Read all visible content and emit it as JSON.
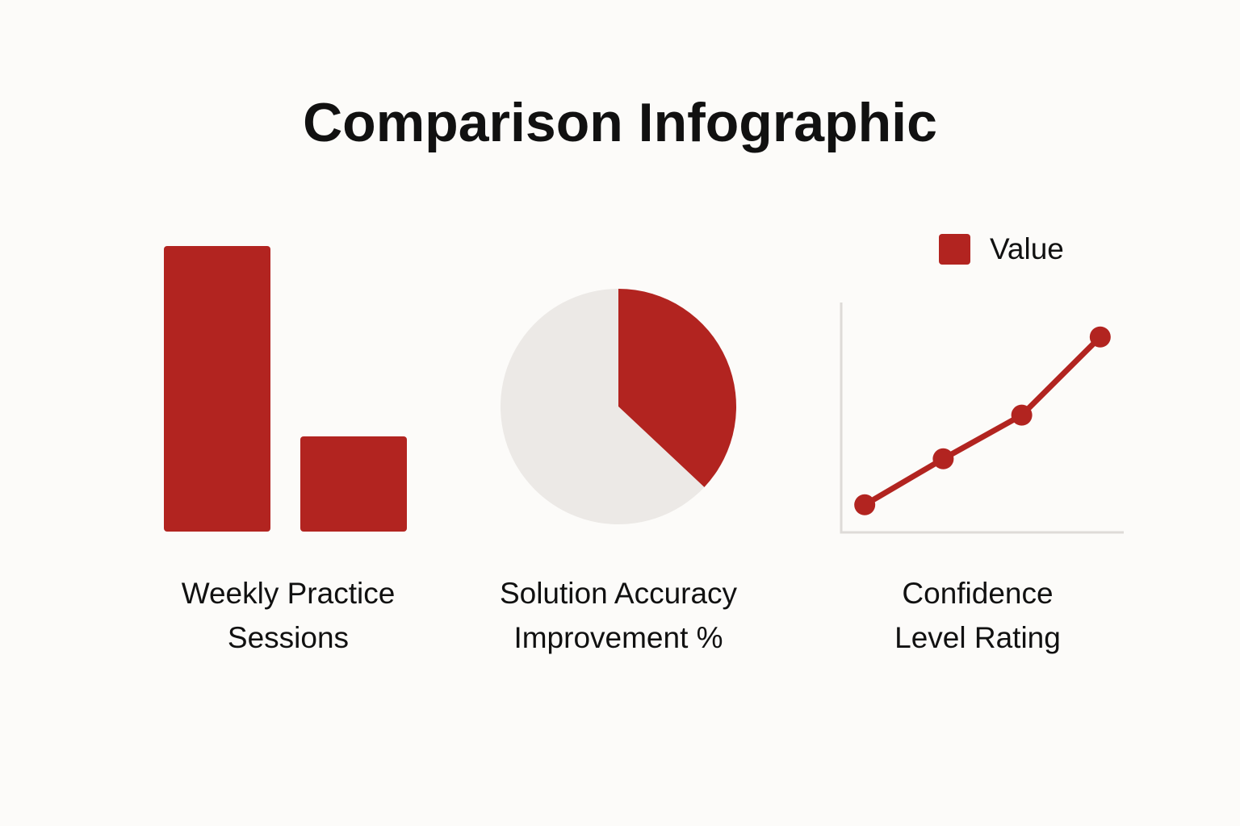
{
  "title": "Comparison Infographic",
  "chart_data": [
    {
      "type": "bar",
      "title": "Weekly Practice Sessions",
      "values": [
        3,
        1
      ],
      "ylim": [
        0,
        3
      ],
      "color": "#b22420"
    },
    {
      "type": "pie",
      "title": "Solution Accuracy Improvement %",
      "values": [
        37,
        63
      ],
      "colors": [
        "#b22420",
        "#ece9e6"
      ]
    },
    {
      "type": "line",
      "title": "Confidence Level Rating",
      "x": [
        0.3,
        1.3,
        2.3,
        3.3
      ],
      "xlim": [
        0,
        3.6
      ],
      "ylim": [
        0,
        10
      ],
      "series": [
        {
          "name": "Value",
          "color": "#b22420",
          "values": [
            1.2,
            3.2,
            5.1,
            8.5
          ]
        }
      ],
      "legend": "upper right"
    }
  ]
}
